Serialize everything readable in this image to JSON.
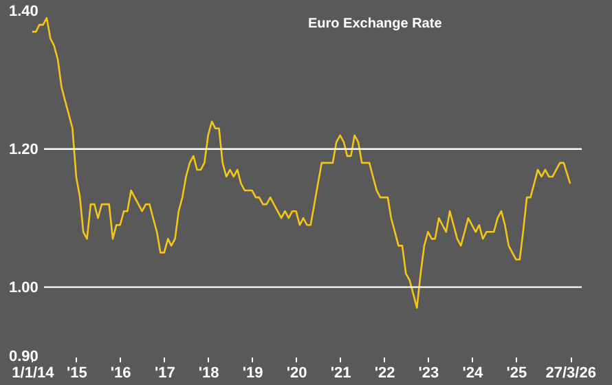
{
  "chart_data": {
    "type": "line",
    "title": "Euro Exchange Rate",
    "x": [
      "2014-01",
      "2014-02",
      "2014-03",
      "2014-04",
      "2014-05",
      "2014-06",
      "2014-07",
      "2014-08",
      "2014-09",
      "2014-10",
      "2014-11",
      "2014-12",
      "2015-01",
      "2015-02",
      "2015-03",
      "2015-04",
      "2015-05",
      "2015-06",
      "2015-07",
      "2015-08",
      "2015-09",
      "2015-10",
      "2015-11",
      "2015-12",
      "2016-01",
      "2016-02",
      "2016-03",
      "2016-04",
      "2016-05",
      "2016-06",
      "2016-07",
      "2016-08",
      "2016-09",
      "2016-10",
      "2016-11",
      "2016-12",
      "2017-01",
      "2017-02",
      "2017-03",
      "2017-04",
      "2017-05",
      "2017-06",
      "2017-07",
      "2017-08",
      "2017-09",
      "2017-10",
      "2017-11",
      "2017-12",
      "2018-01",
      "2018-02",
      "2018-03",
      "2018-04",
      "2018-05",
      "2018-06",
      "2018-07",
      "2018-08",
      "2018-09",
      "2018-10",
      "2018-11",
      "2018-12",
      "2019-01",
      "2019-02",
      "2019-03",
      "2019-04",
      "2019-05",
      "2019-06",
      "2019-07",
      "2019-08",
      "2019-09",
      "2019-10",
      "2019-11",
      "2019-12",
      "2020-01",
      "2020-02",
      "2020-03",
      "2020-04",
      "2020-05",
      "2020-06",
      "2020-07",
      "2020-08",
      "2020-09",
      "2020-10",
      "2020-11",
      "2020-12",
      "2021-01",
      "2021-02",
      "2021-03",
      "2021-04",
      "2021-05",
      "2021-06",
      "2021-07",
      "2021-08",
      "2021-09",
      "2021-10",
      "2021-11",
      "2021-12",
      "2022-01",
      "2022-02",
      "2022-03",
      "2022-04",
      "2022-05",
      "2022-06",
      "2022-07",
      "2022-08",
      "2022-09",
      "2022-10",
      "2022-11",
      "2022-12",
      "2023-01",
      "2023-02",
      "2023-03",
      "2023-04",
      "2023-05",
      "2023-06",
      "2023-07",
      "2023-08",
      "2023-09",
      "2023-10",
      "2023-11",
      "2023-12",
      "2024-01",
      "2024-02",
      "2024-03",
      "2024-04",
      "2024-05",
      "2024-06",
      "2024-07",
      "2024-08",
      "2024-09",
      "2024-10",
      "2024-11",
      "2024-12",
      "2025-01",
      "2025-02",
      "2025-03",
      "2025-04",
      "2025-05",
      "2025-06",
      "2025-07",
      "2025-08",
      "2025-09",
      "2025-10",
      "2025-11",
      "2025-12",
      "2026-01",
      "2026-02",
      "2026-03-27"
    ],
    "series": [
      {
        "color": "#f5c518",
        "values": [
          1.37,
          1.37,
          1.38,
          1.38,
          1.39,
          1.36,
          1.35,
          1.33,
          1.29,
          1.27,
          1.25,
          1.23,
          1.16,
          1.13,
          1.08,
          1.07,
          1.12,
          1.12,
          1.1,
          1.12,
          1.12,
          1.12,
          1.07,
          1.09,
          1.09,
          1.11,
          1.11,
          1.14,
          1.13,
          1.12,
          1.11,
          1.12,
          1.12,
          1.1,
          1.08,
          1.05,
          1.05,
          1.07,
          1.06,
          1.07,
          1.11,
          1.13,
          1.16,
          1.18,
          1.19,
          1.17,
          1.17,
          1.18,
          1.22,
          1.24,
          1.23,
          1.23,
          1.18,
          1.16,
          1.17,
          1.16,
          1.17,
          1.15,
          1.14,
          1.14,
          1.14,
          1.13,
          1.13,
          1.12,
          1.12,
          1.13,
          1.12,
          1.11,
          1.1,
          1.11,
          1.1,
          1.11,
          1.11,
          1.09,
          1.1,
          1.09,
          1.09,
          1.12,
          1.15,
          1.18,
          1.18,
          1.18,
          1.18,
          1.21,
          1.22,
          1.21,
          1.19,
          1.19,
          1.22,
          1.21,
          1.18,
          1.18,
          1.18,
          1.16,
          1.14,
          1.13,
          1.13,
          1.13,
          1.1,
          1.08,
          1.06,
          1.06,
          1.02,
          1.01,
          0.99,
          0.97,
          1.02,
          1.06,
          1.08,
          1.07,
          1.07,
          1.1,
          1.09,
          1.08,
          1.11,
          1.09,
          1.07,
          1.06,
          1.08,
          1.1,
          1.09,
          1.08,
          1.09,
          1.07,
          1.08,
          1.08,
          1.08,
          1.1,
          1.11,
          1.09,
          1.06,
          1.05,
          1.04,
          1.04,
          1.08,
          1.13,
          1.13,
          1.15,
          1.17,
          1.16,
          1.17,
          1.16,
          1.16,
          1.17,
          1.18,
          1.18,
          1.15
        ]
      }
    ],
    "xlim": [
      "2013-05-01",
      "2026-07-01"
    ],
    "xticks": [
      {
        "value": "2014-01-01",
        "label": "1/1/14"
      },
      {
        "value": "2015-01-01",
        "label": "'15"
      },
      {
        "value": "2016-01-01",
        "label": "'16"
      },
      {
        "value": "2017-01-01",
        "label": "'17"
      },
      {
        "value": "2018-01-01",
        "label": "'18"
      },
      {
        "value": "2019-01-01",
        "label": "'19"
      },
      {
        "value": "2020-01-01",
        "label": "'20"
      },
      {
        "value": "2021-01-01",
        "label": "'21"
      },
      {
        "value": "2022-01-01",
        "label": "'22"
      },
      {
        "value": "2023-01-01",
        "label": "'23"
      },
      {
        "value": "2024-01-01",
        "label": "'24"
      },
      {
        "value": "2025-01-01",
        "label": "'25"
      },
      {
        "value": "2026-03-27",
        "label": "27/3/26"
      }
    ],
    "ylim": [
      0.9,
      1.41
    ],
    "yticks": [
      {
        "value": 0.9,
        "label": "0.90"
      },
      {
        "value": 1.0,
        "label": "1.00"
      },
      {
        "value": 1.2,
        "label": "1.20"
      },
      {
        "value": 1.4,
        "label": "1.40"
      }
    ],
    "ref_lines": [
      {
        "axis": "y",
        "value": 1.2,
        "color": "#ffffff"
      },
      {
        "axis": "y",
        "value": 1.0,
        "color": "#ffffff"
      }
    ],
    "grid": false
  }
}
